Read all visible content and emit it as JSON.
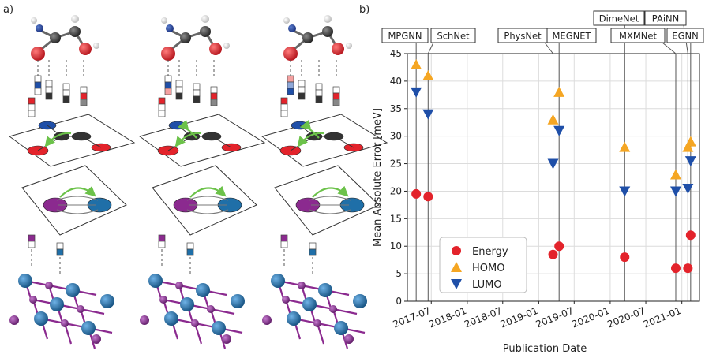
{
  "panel_labels": {
    "a": "a)",
    "b": "b)"
  },
  "colors": {
    "energy": "#e3232b",
    "homo": "#f5a623",
    "lumo": "#1f4fa8",
    "molecule_carbon": "#3a3a3a",
    "molecule_oxygen": "#e3232b",
    "molecule_nitrogen": "#1f4fa8",
    "lattice_a": "#8b2a8f",
    "lattice_b": "#1f6fa8",
    "arrow": "#6cc24a"
  },
  "chart_data": {
    "type": "scatter",
    "title": "",
    "xlabel": "Publication Date",
    "ylabel": "Mean Absolute Error [meV]",
    "ylim": [
      0,
      45
    ],
    "yticks": [
      "0",
      "5",
      "10",
      "15",
      "20",
      "25",
      "30",
      "35",
      "40",
      "45"
    ],
    "xlim": [
      "2017-03-01",
      "2021-04-01"
    ],
    "xticks": [
      "2017-07",
      "2018-01",
      "2018-07",
      "2019-01",
      "2019-07",
      "2020-01",
      "2020-07",
      "2021-01"
    ],
    "grid": true,
    "legend_position": "bottom-left",
    "series": [
      {
        "name": "Energy",
        "marker": "circle",
        "x": [
          "2017-04-15",
          "2017-06-15",
          "2019-03-15",
          "2019-04-15",
          "2020-03-15",
          "2020-12-01",
          "2021-02-01",
          "2021-02-15"
        ],
        "y": [
          19.5,
          19,
          8.5,
          10,
          8,
          6,
          6,
          12
        ]
      },
      {
        "name": "HOMO",
        "marker": "triangle-up",
        "x": [
          "2017-04-15",
          "2017-06-15",
          "2019-03-15",
          "2019-04-15",
          "2020-03-15",
          "2020-12-01",
          "2021-02-01",
          "2021-02-15"
        ],
        "y": [
          43,
          41,
          33,
          38,
          28,
          23,
          28,
          29
        ]
      },
      {
        "name": "LUMO",
        "marker": "triangle-down",
        "x": [
          "2017-04-15",
          "2017-06-15",
          "2019-03-15",
          "2019-04-15",
          "2020-03-15",
          "2020-12-01",
          "2021-02-01",
          "2021-02-15"
        ],
        "y": [
          38,
          34,
          25,
          31,
          20,
          20,
          20.5,
          25.5
        ]
      }
    ],
    "models": [
      {
        "name": "MPGNN",
        "date": "2017-04-15"
      },
      {
        "name": "SchNet",
        "date": "2017-06-15"
      },
      {
        "name": "PhysNet",
        "date": "2019-03-15"
      },
      {
        "name": "MEGNET",
        "date": "2019-04-15"
      },
      {
        "name": "DimeNet",
        "date": "2020-03-15"
      },
      {
        "name": "MXMNet",
        "date": "2020-12-01"
      },
      {
        "name": "PAiNN",
        "date": "2021-02-01"
      },
      {
        "name": "EGNN",
        "date": "2021-02-15"
      }
    ]
  }
}
